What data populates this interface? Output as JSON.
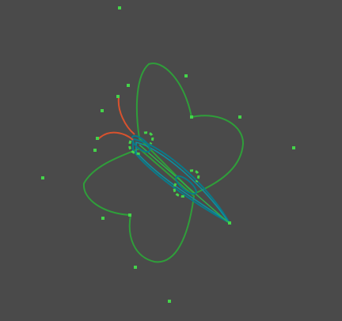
{
  "canvas": {
    "background": "#4a4a4a"
  },
  "colors": {
    "wing_outline": "#2f9e3a",
    "body_outline": "#0a7a8a",
    "body_inner": "#2fae4a",
    "antenna": "#d8522e",
    "control_point": "#44d44a"
  },
  "drawing": {
    "subject": "butterfly-icon",
    "parts": [
      "wings",
      "body",
      "antennae",
      "control-points"
    ]
  }
}
